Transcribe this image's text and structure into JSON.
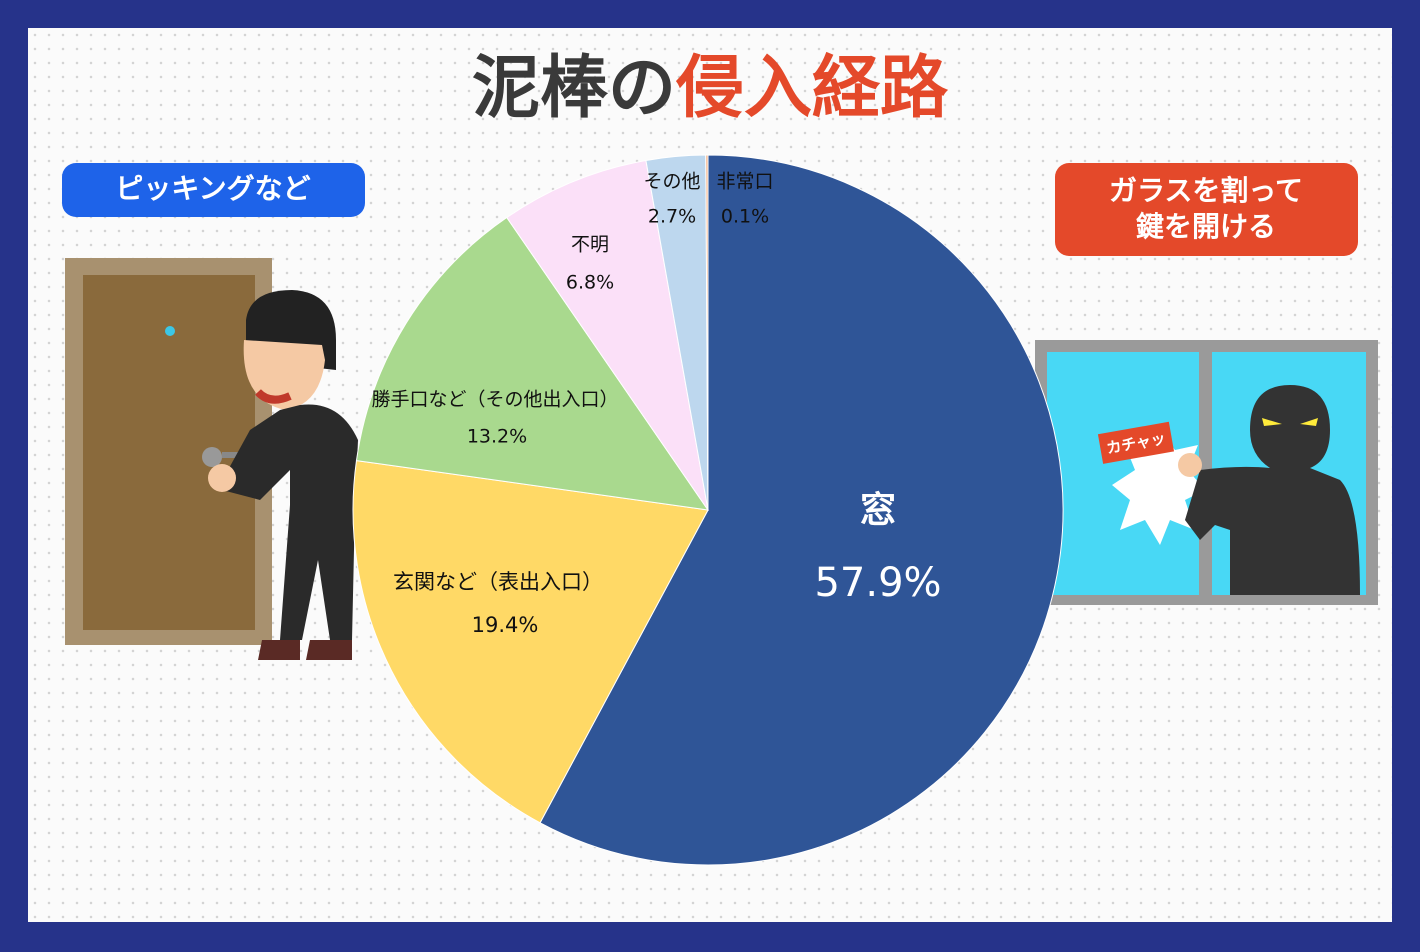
{
  "title": [
    {
      "text": "泥棒の",
      "color": "#3a3a3a"
    },
    {
      "text": "侵入経路",
      "color": "#e4492a"
    }
  ],
  "badges": {
    "left": "ピッキングなど",
    "right": [
      "ガラスを割って",
      "鍵を開ける"
    ]
  },
  "sound_label": "カチャッ",
  "chart_data": {
    "type": "pie",
    "categories": [
      "窓",
      "玄関など（表出入口）",
      "勝手口など（その他出入口）",
      "不明",
      "その他",
      "非常口"
    ],
    "values": [
      57.9,
      19.4,
      13.2,
      6.8,
      2.7,
      0.1
    ],
    "value_labels": [
      "57.9%",
      "19.4%",
      "13.2%",
      "6.8%",
      "2.7%",
      "0.1%"
    ],
    "colors": [
      "#2f5597",
      "#ffd966",
      "#a9d98e",
      "#fbe0f8",
      "#bdd7ee",
      "#f4b183"
    ]
  }
}
